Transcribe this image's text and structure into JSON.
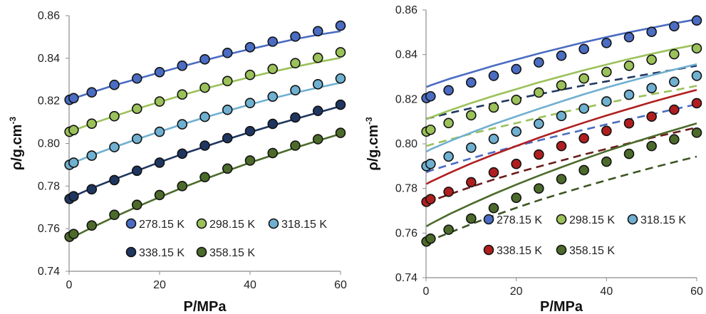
{
  "chart_data": [
    {
      "type": "scatter",
      "xlabel": "P/MPa",
      "ylabel": "ρ/g.cm",
      "ylabel_sup": "-3",
      "xlim": [
        0,
        60
      ],
      "ylim": [
        0.74,
        0.86
      ],
      "x_ticks": [
        "0",
        "20",
        "40",
        "60"
      ],
      "y_ticks": [
        "0.74",
        "0.76",
        "0.78",
        "0.80",
        "0.82",
        "0.84",
        "0.86"
      ],
      "grid": false,
      "legend_position": "bottom-right",
      "x": [
        0.1,
        1,
        5,
        10,
        15,
        20,
        25,
        30,
        35,
        40,
        45,
        50,
        55,
        60
      ],
      "series": [
        {
          "name": "278.15 K",
          "color": "#4a6cc2",
          "values": [
            0.8205,
            0.8213,
            0.824,
            0.8275,
            0.8305,
            0.8335,
            0.8365,
            0.8395,
            0.8425,
            0.8452,
            0.8478,
            0.8502,
            0.8527,
            0.8553
          ],
          "curves": [
            {
              "style": "solid",
              "values": [
                0.8205,
                0.8212,
                0.824,
                0.8273,
                0.8303,
                0.8333,
                0.8362,
                0.839,
                0.8418,
                0.8443,
                0.8467,
                0.849,
                0.851,
                0.8527
              ]
            }
          ]
        },
        {
          "name": "298.15 K",
          "color": "#9bc15a",
          "values": [
            0.8055,
            0.8063,
            0.8093,
            0.8128,
            0.8163,
            0.8197,
            0.823,
            0.8262,
            0.8293,
            0.8322,
            0.835,
            0.8377,
            0.8402,
            0.8428
          ],
          "curves": [
            {
              "style": "solid",
              "values": [
                0.8052,
                0.8062,
                0.8093,
                0.8128,
                0.8163,
                0.8195,
                0.8227,
                0.8257,
                0.8285,
                0.8312,
                0.8337,
                0.836,
                0.8382,
                0.8402
              ]
            }
          ]
        },
        {
          "name": "318.15 K",
          "color": "#6fb0d0",
          "values": [
            0.79,
            0.791,
            0.7943,
            0.7983,
            0.8022,
            0.8055,
            0.809,
            0.8125,
            0.8158,
            0.819,
            0.822,
            0.825,
            0.8278,
            0.8305
          ],
          "curves": [
            {
              "style": "solid",
              "values": [
                0.7898,
                0.791,
                0.7945,
                0.7983,
                0.802,
                0.8055,
                0.809,
                0.8122,
                0.8153,
                0.8183,
                0.8212,
                0.8238,
                0.8262,
                0.8285
              ]
            }
          ]
        },
        {
          "name": "338.15 K",
          "color": "#1f3660",
          "values": [
            0.774,
            0.7752,
            0.7785,
            0.7828,
            0.7872,
            0.791,
            0.7952,
            0.799,
            0.8025,
            0.8058,
            0.8092,
            0.8122,
            0.8153,
            0.8182
          ],
          "curves": [
            {
              "style": "solid",
              "values": [
                0.774,
                0.7752,
                0.779,
                0.7832,
                0.7872,
                0.7912,
                0.795,
                0.7985,
                0.802,
                0.8053,
                0.8085,
                0.8115,
                0.8145,
                0.8175
              ]
            }
          ]
        },
        {
          "name": "358.15 K",
          "color": "#4c6b2b",
          "values": [
            0.7562,
            0.7575,
            0.7615,
            0.7665,
            0.7712,
            0.7758,
            0.78,
            0.7842,
            0.7882,
            0.792,
            0.7955,
            0.799,
            0.802,
            0.805
          ],
          "curves": [
            {
              "style": "solid",
              "values": [
                0.7548,
                0.7562,
                0.7605,
                0.7655,
                0.7703,
                0.7748,
                0.7792,
                0.7833,
                0.7872,
                0.791,
                0.7945,
                0.798,
                0.8013,
                0.8045
              ]
            }
          ]
        }
      ]
    },
    {
      "type": "scatter",
      "xlabel": "P/MPa",
      "ylabel": "ρ/g.cm",
      "ylabel_sup": "-3",
      "xlim": [
        0,
        60
      ],
      "ylim": [
        0.74,
        0.86
      ],
      "x_ticks": [
        "0",
        "20",
        "40",
        "60"
      ],
      "y_ticks": [
        "0.74",
        "0.76",
        "0.78",
        "0.80",
        "0.82",
        "0.84",
        "0.86"
      ],
      "grid": false,
      "legend_position": "bottom-right",
      "x": [
        0.1,
        1,
        5,
        10,
        15,
        20,
        25,
        30,
        35,
        40,
        45,
        50,
        55,
        60
      ],
      "series": [
        {
          "name": "278.15 K",
          "color": "#4a6cc2",
          "values": [
            0.8205,
            0.8213,
            0.824,
            0.8275,
            0.8305,
            0.8335,
            0.8365,
            0.8395,
            0.8425,
            0.8452,
            0.8478,
            0.8502,
            0.8527,
            0.8553
          ],
          "curves": [
            {
              "style": "solid",
              "values": [
                0.8255,
                0.8262,
                0.829,
                0.832,
                0.835,
                0.8378,
                0.8405,
                0.843,
                0.8455,
                0.8478,
                0.85,
                0.852,
                0.854,
                0.8558
              ]
            },
            {
              "style": "dashed",
              "color": "#1f3660",
              "values": [
                0.8112,
                0.8117,
                0.8137,
                0.816,
                0.8182,
                0.8202,
                0.8222,
                0.8242,
                0.8262,
                0.828,
                0.8297,
                0.8315,
                0.8332,
                0.835
              ]
            }
          ]
        },
        {
          "name": "298.15 K",
          "color": "#9bc15a",
          "values": [
            0.8055,
            0.8063,
            0.8093,
            0.8128,
            0.8163,
            0.8197,
            0.823,
            0.8262,
            0.8293,
            0.8322,
            0.835,
            0.8377,
            0.8402,
            0.8428
          ],
          "curves": [
            {
              "style": "solid",
              "values": [
                0.811,
                0.8118,
                0.8148,
                0.8183,
                0.8215,
                0.8245,
                0.8275,
                0.8303,
                0.833,
                0.8355,
                0.838,
                0.8403,
                0.8425,
                0.8445
              ]
            },
            {
              "style": "dashed",
              "values": [
                0.799,
                0.7996,
                0.8018,
                0.8045,
                0.807,
                0.8093,
                0.8117,
                0.814,
                0.8162,
                0.8183,
                0.8203,
                0.8222,
                0.824,
                0.826
              ]
            }
          ]
        },
        {
          "name": "318.15 K",
          "color": "#6fb0d0",
          "values": [
            0.79,
            0.791,
            0.7943,
            0.7983,
            0.8022,
            0.8055,
            0.809,
            0.8125,
            0.8158,
            0.819,
            0.822,
            0.825,
            0.8278,
            0.8305
          ],
          "curves": [
            {
              "style": "solid",
              "values": [
                0.7965,
                0.7975,
                0.801,
                0.805,
                0.8088,
                0.8123,
                0.8157,
                0.819,
                0.8222,
                0.8252,
                0.828,
                0.8307,
                0.8333,
                0.8357
              ]
            },
            {
              "style": "dashed",
              "color": "#4a6cc2",
              "values": [
                0.7872,
                0.788,
                0.7905,
                0.7935,
                0.7963,
                0.799,
                0.8015,
                0.804,
                0.8063,
                0.8087,
                0.811,
                0.8132,
                0.8155,
                0.8177
              ]
            }
          ]
        },
        {
          "name": "338.15 K",
          "color": "#b01f1f",
          "values": [
            0.774,
            0.7752,
            0.7785,
            0.7828,
            0.7872,
            0.791,
            0.7952,
            0.799,
            0.8025,
            0.8058,
            0.8092,
            0.8122,
            0.8153,
            0.8182
          ],
          "curves": [
            {
              "style": "solid",
              "values": [
                0.782,
                0.783,
                0.7868,
                0.7912,
                0.7952,
                0.799,
                0.8027,
                0.8062,
                0.8095,
                0.8127,
                0.8157,
                0.8187,
                0.8215,
                0.8242
              ]
            },
            {
              "style": "dashed",
              "color": "#6a1c1c",
              "values": [
                0.7735,
                0.7743,
                0.7772,
                0.7807,
                0.784,
                0.787,
                0.7898,
                0.7925,
                0.7952,
                0.7977,
                0.8003,
                0.8027,
                0.805,
                0.8073
              ]
            }
          ]
        },
        {
          "name": "358.15 K",
          "color": "#4c6b2b",
          "values": [
            0.7562,
            0.7575,
            0.7615,
            0.7665,
            0.7712,
            0.7758,
            0.78,
            0.7842,
            0.7882,
            0.792,
            0.7955,
            0.799,
            0.802,
            0.805
          ],
          "curves": [
            {
              "style": "solid",
              "values": [
                0.763,
                0.7641,
                0.7683,
                0.773,
                0.7775,
                0.7817,
                0.7857,
                0.7895,
                0.7932,
                0.7967,
                0.8,
                0.8032,
                0.8062,
                0.8092
              ]
            },
            {
              "style": "dashed",
              "color": "#3e5524",
              "values": [
                0.756,
                0.7568,
                0.76,
                0.764,
                0.7678,
                0.7713,
                0.7747,
                0.7778,
                0.7808,
                0.7837,
                0.7865,
                0.7892,
                0.7918,
                0.7943
              ]
            }
          ]
        }
      ]
    }
  ]
}
